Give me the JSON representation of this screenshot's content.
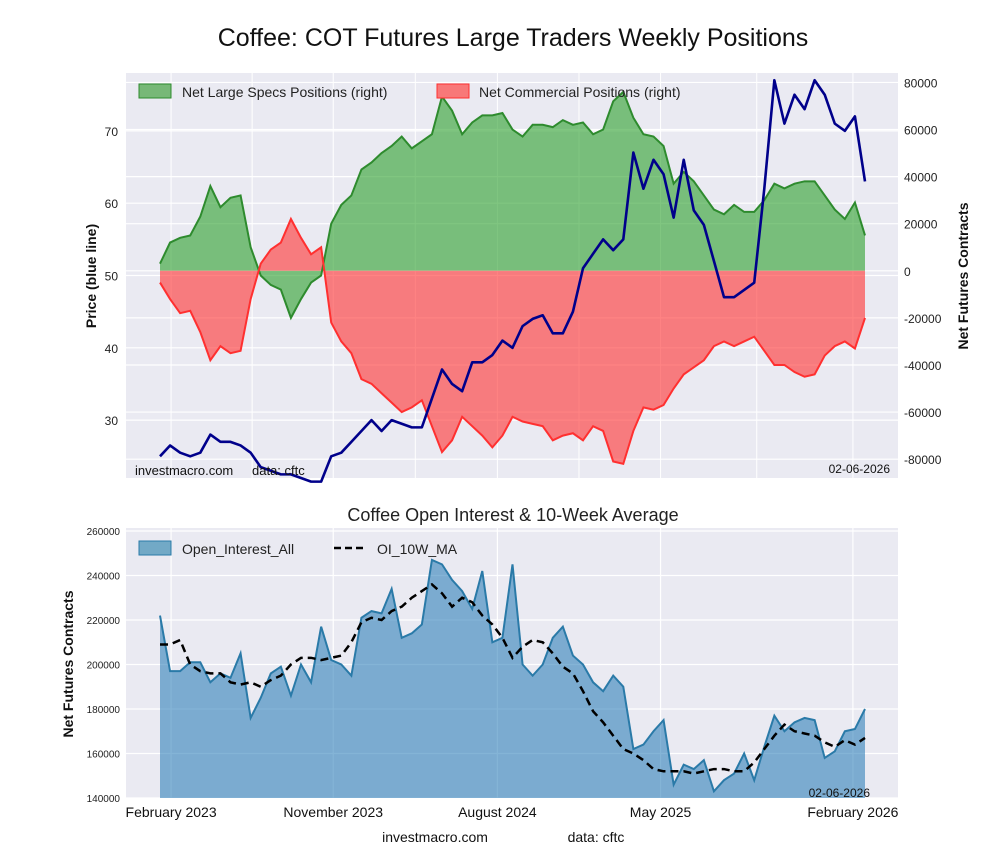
{
  "title": "Coffee: COT Futures Large Traders Weekly Positions",
  "chart_data": [
    {
      "type": "area",
      "title": "Coffee: COT Futures Large Traders Weekly Positions",
      "ylabel_left": "Price (blue line)",
      "ylabel_right": "Net Futures Contracts",
      "ylim_left": [
        22,
        78
      ],
      "ylim_right": [
        -88000,
        84000
      ],
      "left_ticks": [
        30,
        40,
        50,
        60,
        70
      ],
      "right_ticks": [
        -80000,
        -60000,
        -40000,
        -20000,
        0,
        20000,
        40000,
        60000,
        80000
      ],
      "legend": [
        "Net Large Specs Positions (right)",
        "Net Commercial Positions (right)"
      ],
      "legend_position": "top-left",
      "footer_site": "investmacro.com",
      "footer_source": "data: cftc",
      "date": "02-06-2026",
      "series": [
        {
          "name": "Net Large Specs Positions (right)",
          "color": "#2e8b2e",
          "values": [
            3000,
            12000,
            14000,
            15000,
            23000,
            36000,
            27000,
            31000,
            32000,
            10000,
            -2000,
            -6000,
            -8000,
            -20000,
            -12000,
            -5000,
            -2000,
            20000,
            28000,
            32000,
            43000,
            46000,
            50000,
            53000,
            57000,
            52000,
            55000,
            58000,
            74000,
            68000,
            58000,
            63000,
            66000,
            66000,
            67000,
            60000,
            57000,
            62000,
            62000,
            61000,
            64000,
            62000,
            63000,
            58000,
            60000,
            72000,
            76000,
            65000,
            58000,
            57000,
            53000,
            37000,
            42000,
            38000,
            32000,
            26000,
            24000,
            28000,
            25000,
            25000,
            30000,
            37000,
            35000,
            37000,
            38000,
            38000,
            32000,
            26000,
            22000,
            29000,
            15000
          ]
        },
        {
          "name": "Net Commercial Positions (right)",
          "color": "#ff3030",
          "values": [
            -5000,
            -12000,
            -18000,
            -17000,
            -26000,
            -38000,
            -32000,
            -35000,
            -34000,
            -12000,
            3000,
            9000,
            12000,
            22000,
            14000,
            7000,
            10000,
            -22000,
            -30000,
            -35000,
            -46000,
            -48000,
            -52000,
            -56000,
            -60000,
            -58000,
            -55000,
            -66000,
            -77000,
            -72000,
            -62000,
            -66000,
            -70000,
            -75000,
            -70000,
            -62000,
            -64000,
            -65000,
            -66000,
            -72000,
            -70000,
            -69000,
            -72000,
            -66000,
            -68000,
            -81000,
            -82000,
            -68000,
            -58000,
            -59000,
            -57000,
            -50000,
            -44000,
            -41000,
            -38000,
            -32000,
            -30000,
            -32000,
            -30000,
            -28000,
            -34000,
            -40000,
            -40000,
            -43000,
            -45000,
            -44000,
            -36000,
            -32000,
            -30000,
            -33000,
            -20000
          ]
        },
        {
          "name": "Price",
          "color": "#00008b",
          "axis": "left",
          "values": [
            25,
            26.5,
            25.5,
            25,
            25.5,
            28,
            27,
            27,
            26.5,
            25.5,
            23.5,
            23,
            22.5,
            22.5,
            22,
            21.5,
            21.5,
            25,
            25.5,
            27,
            28.5,
            30,
            28.5,
            30,
            29.5,
            29,
            29,
            33,
            37,
            35,
            34,
            38,
            38,
            39,
            41,
            40,
            43,
            44,
            44.5,
            42,
            42,
            45,
            51,
            53,
            55,
            53.5,
            55,
            67,
            62,
            66,
            64,
            58,
            66,
            59,
            57,
            52,
            47,
            47,
            48,
            49,
            62,
            77,
            71,
            75,
            73,
            77,
            75,
            71,
            70,
            72,
            63
          ]
        }
      ]
    },
    {
      "type": "area",
      "title": "Coffee Open Interest & 10-Week Average",
      "ylabel": "Net Futures Contracts",
      "ylim": [
        140000,
        260000
      ],
      "y_ticks": [
        140000,
        160000,
        180000,
        200000,
        220000,
        240000,
        260000
      ],
      "x_ticks": [
        {
          "label": "February 2023",
          "at": 1.1
        },
        {
          "label": "November 2023",
          "at": 17.2
        },
        {
          "label": "August 2024",
          "at": 33.5
        },
        {
          "label": "May 2025",
          "at": 49.7
        },
        {
          "label": "February 2026",
          "at": 68.8
        }
      ],
      "legend": [
        "Open_Interest_All",
        "OI_10W_MA"
      ],
      "legend_position": "top-left",
      "date": "02-06-2026",
      "footer_site": "investmacro.com",
      "footer_source": "data: cftc",
      "series": [
        {
          "name": "Open_Interest_All",
          "color": "#2a7aa8",
          "values": [
            222000,
            197000,
            197000,
            201000,
            201000,
            192000,
            196000,
            194000,
            205000,
            176000,
            185000,
            196000,
            199000,
            186000,
            200000,
            192000,
            217000,
            202000,
            200000,
            195000,
            221000,
            224000,
            223000,
            234000,
            212000,
            214000,
            218000,
            247000,
            245000,
            238000,
            233000,
            225000,
            242000,
            210000,
            212000,
            245000,
            200000,
            195000,
            200000,
            212000,
            217000,
            204000,
            200000,
            192000,
            188000,
            195000,
            190000,
            162000,
            164000,
            170000,
            175000,
            146000,
            155000,
            153000,
            157000,
            143000,
            148000,
            151000,
            160000,
            148000,
            163000,
            177000,
            170000,
            174000,
            176000,
            175000,
            158000,
            161000,
            170000,
            171000,
            180000
          ]
        },
        {
          "name": "OI_10W_MA",
          "color": "#000000",
          "values": [
            209000,
            209000,
            211000,
            200000,
            197000,
            196000,
            196000,
            192000,
            191000,
            192000,
            190000,
            193000,
            195000,
            200000,
            203000,
            203000,
            202000,
            203000,
            204000,
            210000,
            219000,
            221000,
            220000,
            224000,
            226000,
            230000,
            233000,
            236000,
            232000,
            226000,
            230000,
            228000,
            222000,
            218000,
            212000,
            203000,
            208000,
            211000,
            210000,
            205000,
            199000,
            196000,
            188000,
            179000,
            174000,
            168000,
            162000,
            160000,
            157000,
            153000,
            152000,
            152000,
            152000,
            151000,
            152000,
            153000,
            153000,
            152000,
            152000,
            156000,
            162000,
            168000,
            173000,
            170000,
            169000,
            168000,
            165000,
            163000,
            166000,
            164000,
            167000
          ]
        }
      ]
    }
  ]
}
